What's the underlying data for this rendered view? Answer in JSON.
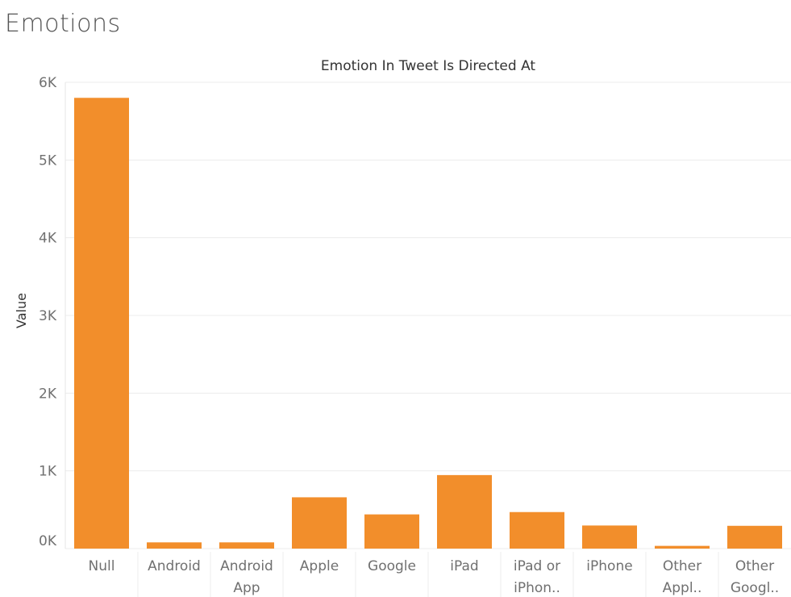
{
  "page": {
    "title": "Emotions"
  },
  "chart_data": {
    "type": "bar",
    "title": "Emotion In Tweet Is Directed At",
    "xlabel": "",
    "ylabel": "Value",
    "categories": [
      [
        "Null"
      ],
      [
        "Android"
      ],
      [
        "Android",
        "App"
      ],
      [
        "Apple"
      ],
      [
        "Google"
      ],
      [
        "iPad"
      ],
      [
        "iPad or",
        "iPhon.."
      ],
      [
        "iPhone"
      ],
      [
        "Other",
        "Appl.."
      ],
      [
        "Other",
        "Googl.."
      ]
    ],
    "values": [
      5800,
      80,
      80,
      660,
      440,
      946,
      470,
      297,
      35,
      293
    ],
    "ylim": [
      0,
      6000
    ],
    "yticks": [
      0,
      1000,
      2000,
      3000,
      4000,
      5000,
      6000
    ],
    "ytick_labels": [
      "0K",
      "1K",
      "2K",
      "3K",
      "4K",
      "5K",
      "6K"
    ],
    "bar_color": "#F28E2B",
    "grid": true
  }
}
